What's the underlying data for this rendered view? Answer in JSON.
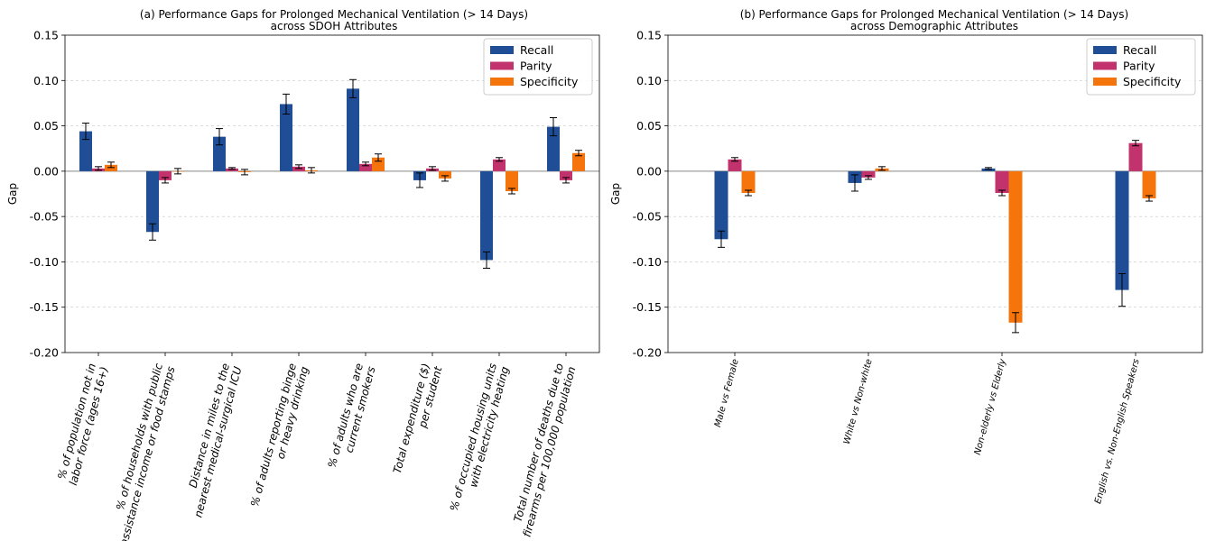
{
  "chart_data": [
    {
      "type": "bar",
      "title_line1": "(a) Performance Gaps for Prolonged Mechanical Ventilation (> 14 Days)",
      "title_line2": "across SDOH Attributes",
      "ylabel": "Gap",
      "ylim": [
        -0.2,
        0.15
      ],
      "yticks": [
        "-0.20",
        "-0.15",
        "-0.10",
        "-0.05",
        "0.00",
        "0.05",
        "0.10",
        "0.15"
      ],
      "grid": "horizontal dashed",
      "legend": "top-right",
      "categories": [
        [
          "% of population not in",
          "labor force (ages 16+)"
        ],
        [
          "% of households with public",
          "assistance income or food stamps"
        ],
        [
          "Distance in miles to the",
          "nearest medical-surgical ICU"
        ],
        [
          "% of adults reporting binge",
          "or heavy drinking"
        ],
        [
          "% of adults who are",
          "current smokers"
        ],
        [
          "Total expenditure ($)",
          "per student"
        ],
        [
          "% of occupied housing units",
          "with electricity heating"
        ],
        [
          "Total number of deaths due to",
          "firearms per 100,000 population"
        ]
      ],
      "series": [
        {
          "name": "Recall",
          "color": "#1f4e96",
          "values": [
            0.044,
            -0.067,
            0.038,
            0.074,
            0.091,
            -0.01,
            -0.098,
            0.049
          ],
          "errors": [
            0.009,
            0.009,
            0.009,
            0.011,
            0.01,
            0.008,
            0.009,
            0.01
          ]
        },
        {
          "name": "Parity",
          "color": "#c2336d",
          "values": [
            0.003,
            -0.01,
            0.003,
            0.005,
            0.008,
            0.003,
            0.013,
            -0.01
          ],
          "errors": [
            0.002,
            0.003,
            0.001,
            0.002,
            0.002,
            0.002,
            0.002,
            0.003
          ]
        },
        {
          "name": "Specificity",
          "color": "#f5740b",
          "values": [
            0.007,
            0.0,
            -0.001,
            0.001,
            0.015,
            -0.008,
            -0.022,
            0.02
          ],
          "errors": [
            0.003,
            0.003,
            0.003,
            0.003,
            0.004,
            0.003,
            0.003,
            0.003
          ]
        }
      ]
    },
    {
      "type": "bar",
      "title_line1": "(b) Performance Gaps for Prolonged Mechanical Ventilation (> 14 Days)",
      "title_line2": "across Demographic Attributes",
      "ylabel": "Gap",
      "ylim": [
        -0.2,
        0.15
      ],
      "yticks": [
        "-0.20",
        "-0.15",
        "-0.10",
        "-0.05",
        "0.00",
        "0.05",
        "0.10",
        "0.15"
      ],
      "grid": "horizontal dashed",
      "legend": "top-right",
      "categories": [
        [
          "Male vs Female"
        ],
        [
          "White vs Non-white"
        ],
        [
          "Non-elderly vs Elderly"
        ],
        [
          "English vs. Non-English Speakers"
        ]
      ],
      "series": [
        {
          "name": "Recall",
          "color": "#1f4e96",
          "values": [
            -0.075,
            -0.013,
            0.003,
            -0.131
          ],
          "errors": [
            0.009,
            0.009,
            0.001,
            0.018
          ]
        },
        {
          "name": "Parity",
          "color": "#c2336d",
          "values": [
            0.013,
            -0.007,
            -0.024,
            0.031
          ],
          "errors": [
            0.002,
            0.002,
            0.003,
            0.003
          ]
        },
        {
          "name": "Specificity",
          "color": "#f5740b",
          "values": [
            -0.024,
            0.003,
            -0.167,
            -0.03
          ],
          "errors": [
            0.003,
            0.002,
            0.011,
            0.003
          ]
        }
      ]
    }
  ]
}
